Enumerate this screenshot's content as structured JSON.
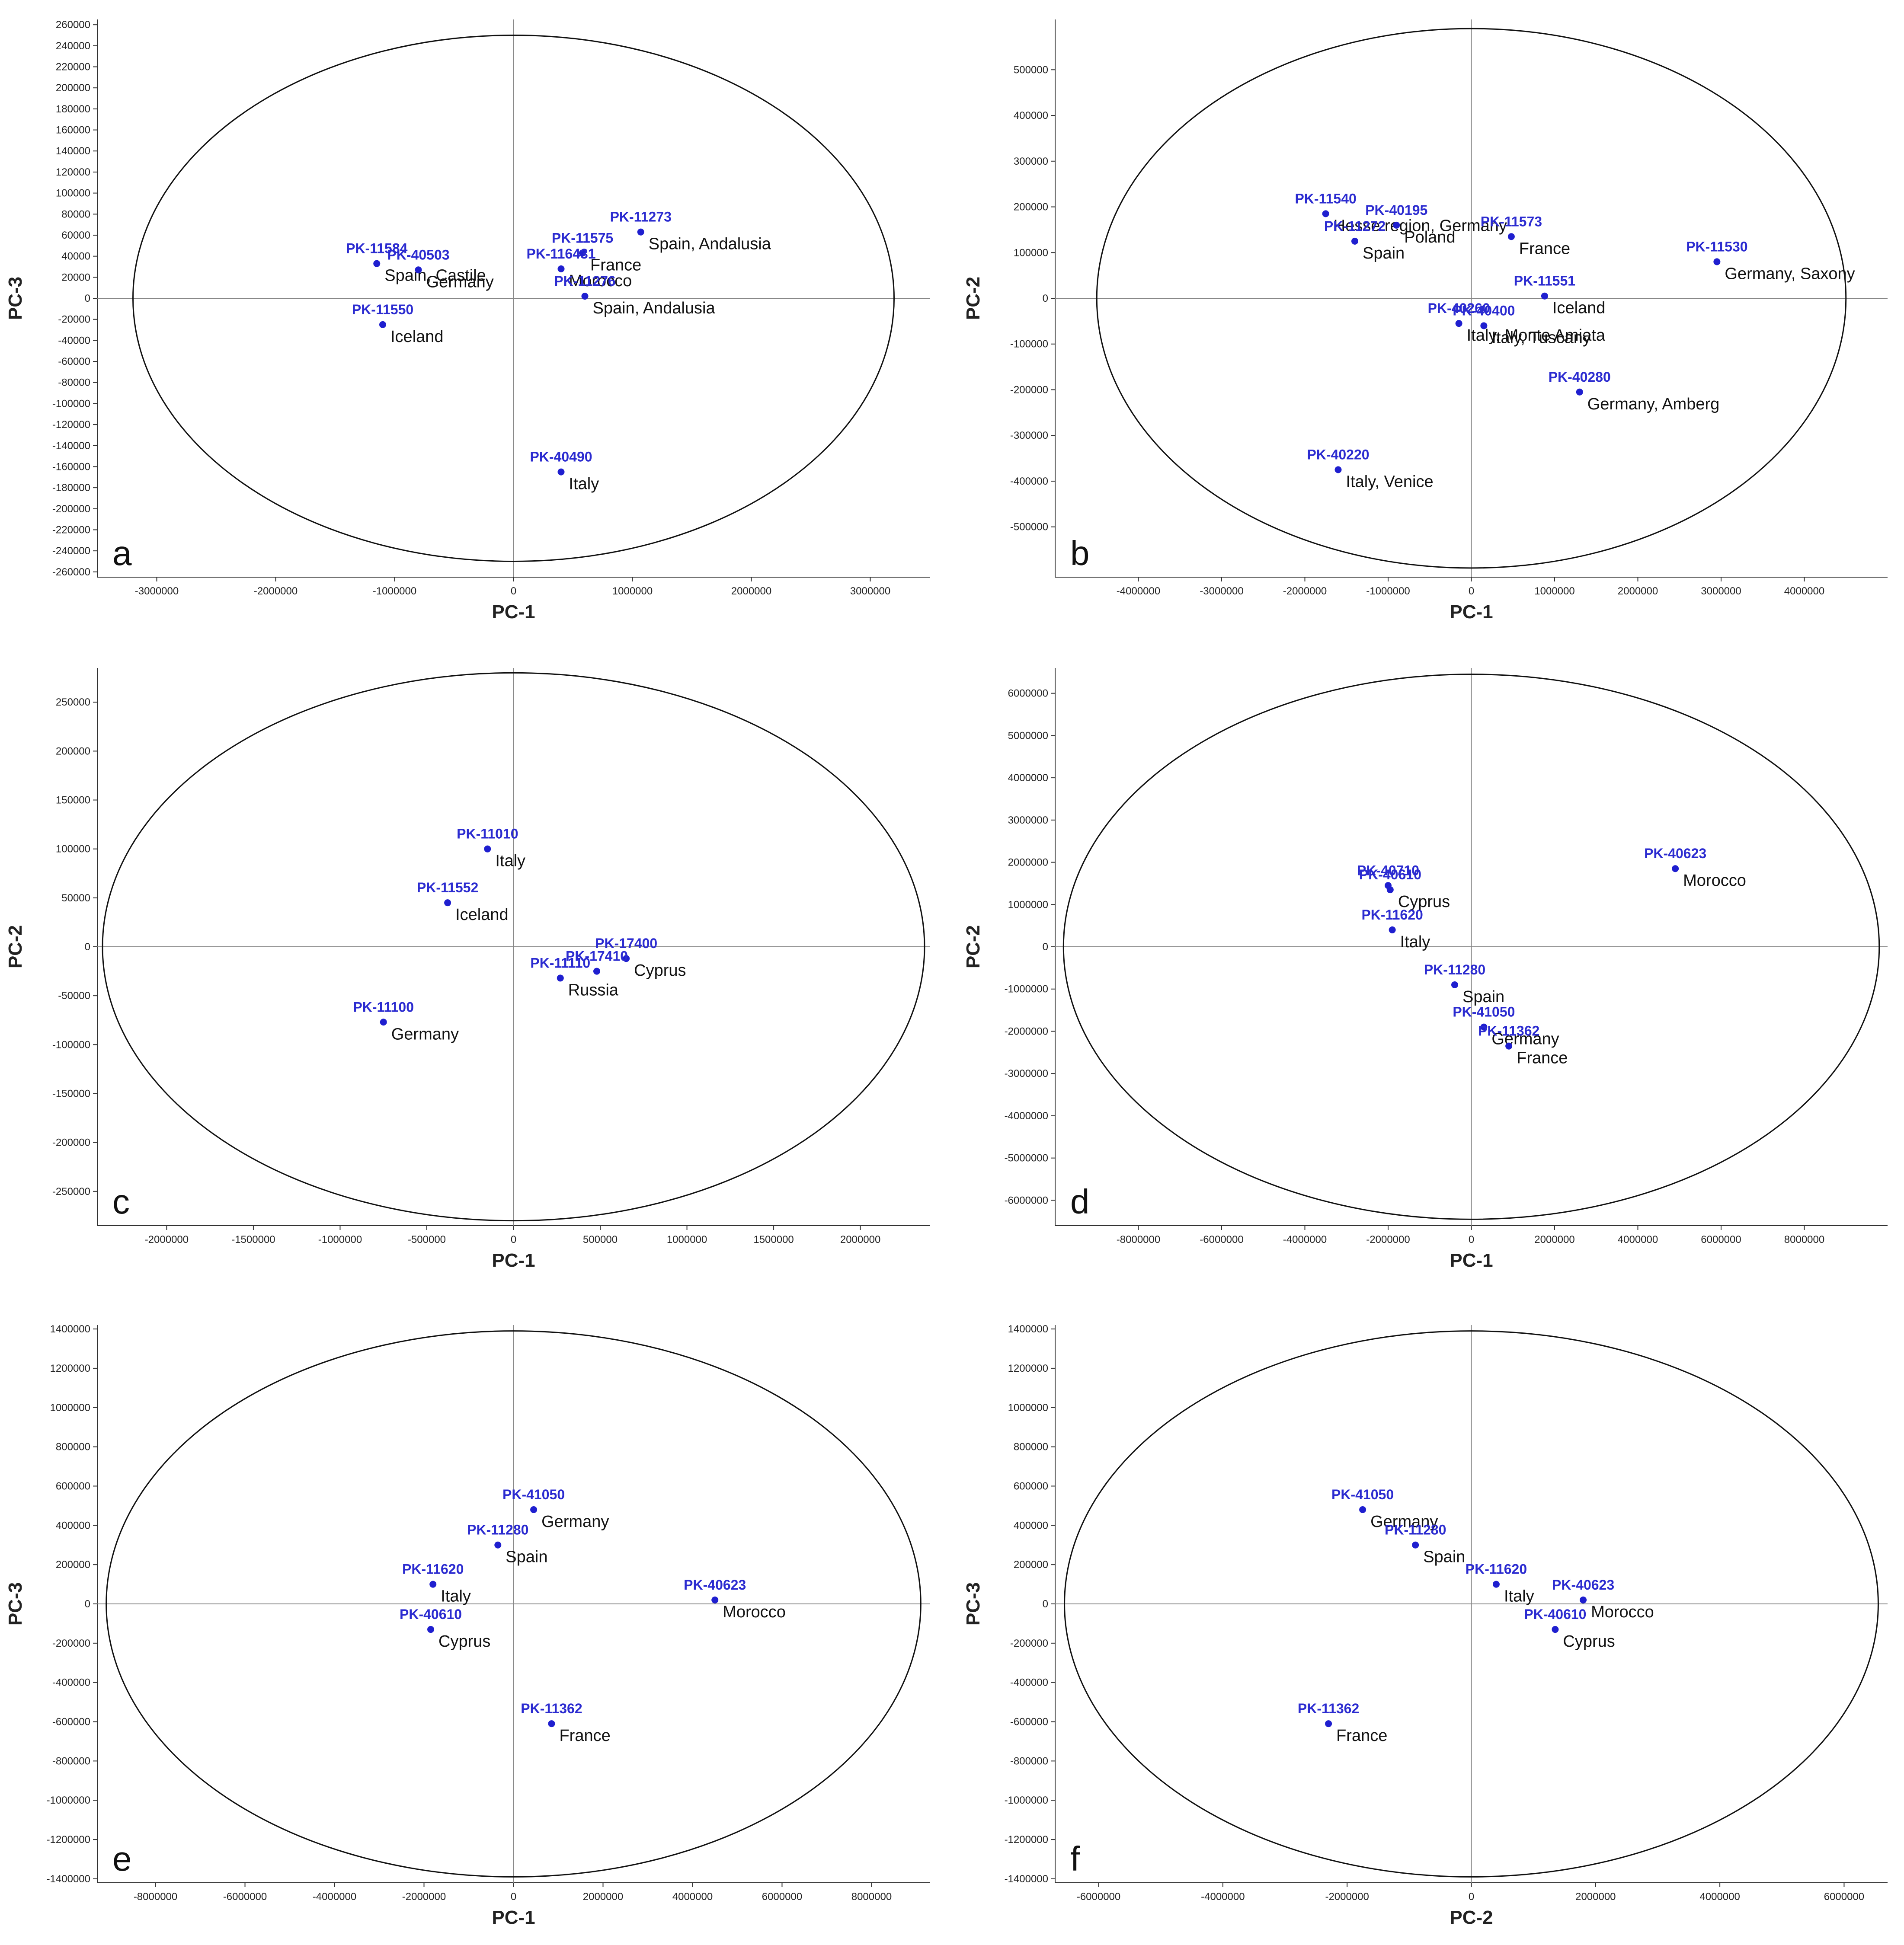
{
  "chart_data": [
    {
      "type": "scatter",
      "panel_letter": "a",
      "xlabel": "PC-1",
      "ylabel": "PC-3",
      "xlim": [
        -3500000,
        3500000
      ],
      "ylim": [
        -265000,
        265000
      ],
      "x_ticks": [
        -3000000,
        -2000000,
        -1000000,
        0,
        1000000,
        2000000,
        3000000
      ],
      "y_ticks": [
        -260000,
        -240000,
        -220000,
        -200000,
        -180000,
        -160000,
        -140000,
        -120000,
        -100000,
        -80000,
        -60000,
        -40000,
        -20000,
        0,
        20000,
        40000,
        60000,
        80000,
        100000,
        120000,
        140000,
        160000,
        180000,
        200000,
        220000,
        240000,
        260000
      ],
      "ellipse": {
        "rx": 3200000,
        "ry": 250000
      },
      "points": [
        {
          "id": "PK-11584",
          "region": "Spain, Castile",
          "x": -1150000,
          "y": 33000
        },
        {
          "id": "PK-40503",
          "region": "Germany",
          "x": -800000,
          "y": 27000
        },
        {
          "id": "PK-11550",
          "region": "Iceland",
          "x": -1100000,
          "y": -25000
        },
        {
          "id": "PK-11273",
          "region": "Spain, Andalusia",
          "x": 1070000,
          "y": 63000
        },
        {
          "id": "PK-11575",
          "region": "France",
          "x": 580000,
          "y": 43000
        },
        {
          "id": "PK-116431",
          "region": "Morocco",
          "x": 400000,
          "y": 28000
        },
        {
          "id": "PK-11276",
          "region": "Spain, Andalusia",
          "x": 600000,
          "y": 2000
        },
        {
          "id": "PK-40490",
          "region": "Italy",
          "x": 400000,
          "y": -165000
        }
      ]
    },
    {
      "type": "scatter",
      "panel_letter": "b",
      "xlabel": "PC-1",
      "ylabel": "PC-2",
      "xlim": [
        -5000000,
        5000000
      ],
      "ylim": [
        -610000,
        610000
      ],
      "x_ticks": [
        -4000000,
        -3000000,
        -2000000,
        -1000000,
        0,
        1000000,
        2000000,
        3000000,
        4000000
      ],
      "y_ticks": [
        -500000,
        -400000,
        -300000,
        -200000,
        -100000,
        0,
        100000,
        200000,
        300000,
        400000,
        500000
      ],
      "ellipse": {
        "rx": 4500000,
        "ry": 590000
      },
      "points": [
        {
          "id": "PK-11540",
          "region": "Hesse region, Germany",
          "x": -1750000,
          "y": 185000
        },
        {
          "id": "PK-40195",
          "region": "Poland",
          "x": -900000,
          "y": 160000
        },
        {
          "id": "PK-11272",
          "region": "Spain",
          "x": -1400000,
          "y": 125000
        },
        {
          "id": "PK-11573",
          "region": "France",
          "x": 480000,
          "y": 135000
        },
        {
          "id": "PK-11530",
          "region": "Germany, Saxony",
          "x": 2950000,
          "y": 80000
        },
        {
          "id": "PK-11551",
          "region": "Iceland",
          "x": 880000,
          "y": 5000
        },
        {
          "id": "PK-40260",
          "region": "Italy, Monte Amiata",
          "x": -150000,
          "y": -55000
        },
        {
          "id": "PK-40400",
          "region": "Italy, Tuscany",
          "x": 150000,
          "y": -60000
        },
        {
          "id": "PK-40280",
          "region": "Germany, Amberg",
          "x": 1300000,
          "y": -205000
        },
        {
          "id": "PK-40220",
          "region": "Italy, Venice",
          "x": -1600000,
          "y": -375000
        }
      ]
    },
    {
      "type": "scatter",
      "panel_letter": "c",
      "xlabel": "PC-1",
      "ylabel": "PC-2",
      "xlim": [
        -2400000,
        2400000
      ],
      "ylim": [
        -285000,
        285000
      ],
      "x_ticks": [
        -2000000,
        -1500000,
        -1000000,
        -500000,
        0,
        500000,
        1000000,
        1500000,
        2000000
      ],
      "y_ticks": [
        -250000,
        -200000,
        -150000,
        -100000,
        -50000,
        0,
        50000,
        100000,
        150000,
        200000,
        250000
      ],
      "ellipse": {
        "rx": 2370000,
        "ry": 280000
      },
      "points": [
        {
          "id": "PK-11010",
          "region": "Italy",
          "x": -150000,
          "y": 100000
        },
        {
          "id": "PK-11552",
          "region": "Iceland",
          "x": -380000,
          "y": 45000
        },
        {
          "id": "PK-17400",
          "region": "Cyprus",
          "x": 650000,
          "y": -12000
        },
        {
          "id": "PK-17410",
          "region": "",
          "x": 480000,
          "y": -25000
        },
        {
          "id": "PK-11110",
          "region": "Russia",
          "x": 270000,
          "y": -32000
        },
        {
          "id": "PK-11100",
          "region": "Germany",
          "x": -750000,
          "y": -77000
        }
      ]
    },
    {
      "type": "scatter",
      "panel_letter": "d",
      "xlabel": "PC-1",
      "ylabel": "PC-2",
      "xlim": [
        -10000000,
        10000000
      ],
      "ylim": [
        -6600000,
        6600000
      ],
      "x_ticks": [
        -8000000,
        -6000000,
        -4000000,
        -2000000,
        0,
        2000000,
        4000000,
        6000000,
        8000000
      ],
      "y_ticks": [
        -6000000,
        -5000000,
        -4000000,
        -3000000,
        -2000000,
        -1000000,
        0,
        1000000,
        2000000,
        3000000,
        4000000,
        5000000,
        6000000
      ],
      "ellipse": {
        "rx": 9800000,
        "ry": 6450000
      },
      "points": [
        {
          "id": "PK-40710",
          "region": "",
          "x": -2000000,
          "y": 1450000
        },
        {
          "id": "PK-40610",
          "region": "Cyprus",
          "x": -1950000,
          "y": 1350000
        },
        {
          "id": "PK-11620",
          "region": "Italy",
          "x": -1900000,
          "y": 400000
        },
        {
          "id": "PK-40623",
          "region": "Morocco",
          "x": 4900000,
          "y": 1850000
        },
        {
          "id": "PK-11280",
          "region": "Spain",
          "x": -400000,
          "y": -900000
        },
        {
          "id": "PK-41050",
          "region": "Germany",
          "x": 300000,
          "y": -1900000
        },
        {
          "id": "PK-11362",
          "region": "France",
          "x": 900000,
          "y": -2350000
        }
      ]
    },
    {
      "type": "scatter",
      "panel_letter": "e",
      "xlabel": "PC-1",
      "ylabel": "PC-3",
      "xlim": [
        -9300000,
        9300000
      ],
      "ylim": [
        -1420000,
        1420000
      ],
      "x_ticks": [
        -8000000,
        -6000000,
        -4000000,
        -2000000,
        0,
        2000000,
        4000000,
        6000000,
        8000000
      ],
      "y_ticks": [
        -1400000,
        -1200000,
        -1000000,
        -800000,
        -600000,
        -400000,
        -200000,
        0,
        200000,
        400000,
        600000,
        800000,
        1000000,
        1200000,
        1400000
      ],
      "ellipse": {
        "rx": 9100000,
        "ry": 1390000
      },
      "points": [
        {
          "id": "PK-41050",
          "region": "Germany",
          "x": 450000,
          "y": 480000
        },
        {
          "id": "PK-11280",
          "region": "Spain",
          "x": -350000,
          "y": 300000
        },
        {
          "id": "PK-11620",
          "region": "Italy",
          "x": -1800000,
          "y": 100000
        },
        {
          "id": "PK-40623",
          "region": "Morocco",
          "x": 4500000,
          "y": 20000
        },
        {
          "id": "PK-40610",
          "region": "Cyprus",
          "x": -1850000,
          "y": -130000
        },
        {
          "id": "PK-11362",
          "region": "France",
          "x": 850000,
          "y": -610000
        }
      ]
    },
    {
      "type": "scatter",
      "panel_letter": "f",
      "xlabel": "PC-2",
      "ylabel": "PC-3",
      "xlim": [
        -6700000,
        6700000
      ],
      "ylim": [
        -1420000,
        1420000
      ],
      "x_ticks": [
        -6000000,
        -4000000,
        -2000000,
        0,
        2000000,
        4000000,
        6000000
      ],
      "y_ticks": [
        -1400000,
        -1200000,
        -1000000,
        -800000,
        -600000,
        -400000,
        -200000,
        0,
        200000,
        400000,
        600000,
        800000,
        1000000,
        1200000,
        1400000
      ],
      "ellipse": {
        "rx": 6550000,
        "ry": 1390000
      },
      "points": [
        {
          "id": "PK-41050",
          "region": "Germany",
          "x": -1750000,
          "y": 480000
        },
        {
          "id": "PK-11280",
          "region": "Spain",
          "x": -900000,
          "y": 300000
        },
        {
          "id": "PK-11620",
          "region": "Italy",
          "x": 400000,
          "y": 100000
        },
        {
          "id": "PK-40623",
          "region": "Morocco",
          "x": 1800000,
          "y": 20000
        },
        {
          "id": "PK-40610",
          "region": "Cyprus",
          "x": 1350000,
          "y": -130000
        },
        {
          "id": "PK-11362",
          "region": "France",
          "x": -2300000,
          "y": -610000
        }
      ]
    }
  ]
}
